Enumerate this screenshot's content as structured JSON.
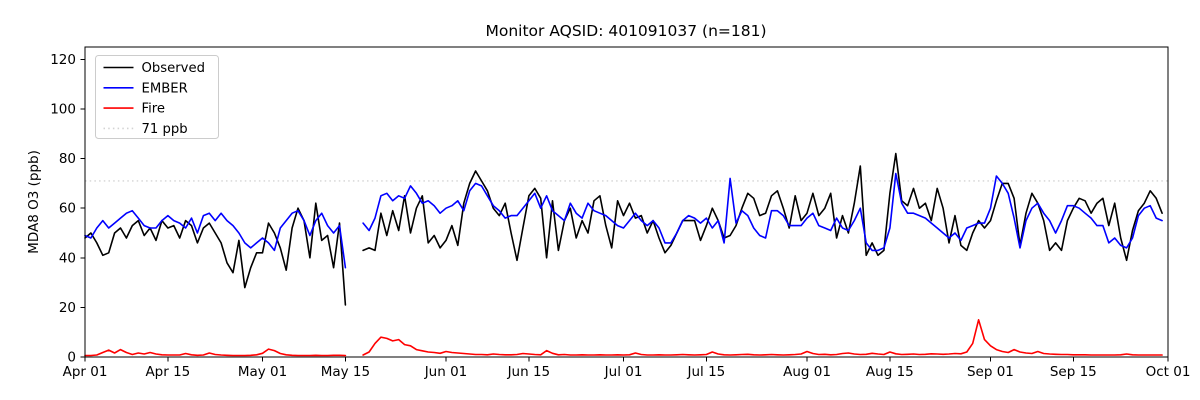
{
  "figure": {
    "background": "#ffffff",
    "frame_color": "#000000"
  },
  "chart_data": {
    "type": "line",
    "title": "Monitor AQSID: 401091037 (n=181)",
    "xlabel": "",
    "ylabel": "MDA8 O3 (ppb)",
    "ylim": [
      0,
      125
    ],
    "yticks": [
      0,
      20,
      40,
      60,
      80,
      100,
      120
    ],
    "x_days_total": 183,
    "xtick_days": [
      0,
      14,
      30,
      44,
      61,
      75,
      91,
      105,
      122,
      136,
      153,
      167,
      183
    ],
    "xtick_labels": [
      "Apr 01",
      "Apr 15",
      "May 01",
      "May 15",
      "Jun 01",
      "Jun 15",
      "Jul 01",
      "Jul 15",
      "Aug 01",
      "Aug 15",
      "Sep 01",
      "Sep 15",
      "Oct 01"
    ],
    "grid": false,
    "legend_position": "upper-left",
    "threshold": {
      "value": 71,
      "label": "71 ppb",
      "color": "#d3d3d3",
      "style": "dotted"
    },
    "legend": [
      {
        "label": "Observed",
        "color": "#000000",
        "style": "solid"
      },
      {
        "label": "EMBER",
        "color": "#0000ff",
        "style": "solid"
      },
      {
        "label": "Fire",
        "color": "#ff0000",
        "style": "solid"
      },
      {
        "label": "71 ppb",
        "color": "#d3d3d3",
        "style": "dotted"
      }
    ],
    "x_note": "daily values, day 0 = Apr 01; nulls = missing days (May 16, May 17)",
    "series": [
      {
        "name": "Observed",
        "color": "#000000",
        "values": [
          48,
          50,
          46,
          41,
          42,
          50,
          52,
          48,
          53,
          55,
          49,
          52,
          47,
          55,
          52,
          53,
          48,
          55,
          53,
          46,
          52,
          54,
          50,
          46,
          38,
          34,
          47,
          28,
          36,
          42,
          42,
          54,
          50,
          44,
          35,
          52,
          60,
          55,
          40,
          62,
          47,
          49,
          36,
          54,
          21,
          null,
          null,
          43,
          44,
          43,
          58,
          49,
          59,
          51,
          65,
          50,
          60,
          65,
          46,
          49,
          44,
          47,
          53,
          45,
          62,
          70,
          75,
          71,
          67,
          60,
          57,
          62,
          50,
          39,
          52,
          65,
          68,
          64,
          40,
          63,
          43,
          55,
          60,
          48,
          55,
          50,
          63,
          65,
          53,
          44,
          63,
          57,
          62,
          56,
          57,
          50,
          55,
          48,
          42,
          45,
          50,
          55,
          55,
          55,
          47,
          53,
          60,
          55,
          48,
          49,
          53,
          60,
          66,
          64,
          57,
          58,
          65,
          67,
          60,
          52,
          65,
          55,
          58,
          66,
          57,
          60,
          66,
          48,
          57,
          50,
          62,
          77,
          41,
          46,
          41,
          43,
          66,
          82,
          63,
          61,
          68,
          60,
          62,
          55,
          68,
          60,
          46,
          57,
          45,
          43,
          50,
          55,
          52,
          55,
          63,
          70,
          70,
          64,
          45,
          58,
          66,
          62,
          55,
          43,
          46,
          43,
          55,
          60,
          64,
          63,
          58,
          62,
          64,
          53,
          62,
          48,
          39,
          51,
          59,
          62,
          67,
          64,
          58
        ]
      },
      {
        "name": "EMBER",
        "color": "#0000ff",
        "values": [
          49,
          48,
          52,
          55,
          52,
          54,
          56,
          58,
          59,
          56,
          53,
          52,
          52,
          55,
          57,
          55,
          54,
          52,
          56,
          50,
          57,
          58,
          55,
          58,
          55,
          53,
          50,
          46,
          44,
          46,
          48,
          46,
          43,
          52,
          55,
          58,
          59,
          55,
          49,
          55,
          58,
          53,
          50,
          53,
          36,
          null,
          null,
          54,
          51,
          56,
          65,
          66,
          63,
          65,
          64,
          69,
          66,
          62,
          63,
          61,
          58,
          60,
          61,
          63,
          59,
          67,
          70,
          69,
          65,
          61,
          59,
          56,
          57,
          57,
          60,
          63,
          66,
          60,
          65,
          59,
          57,
          55,
          62,
          58,
          56,
          62,
          59,
          58,
          57,
          55,
          53,
          52,
          55,
          58,
          55,
          53,
          55,
          52,
          46,
          46,
          50,
          55,
          57,
          56,
          54,
          56,
          52,
          55,
          46,
          72,
          54,
          59,
          57,
          52,
          49,
          48,
          59,
          59,
          57,
          53,
          53,
          53,
          56,
          58,
          53,
          52,
          51,
          56,
          52,
          51,
          55,
          60,
          46,
          43,
          43,
          44,
          52,
          74,
          62,
          58,
          58,
          57,
          56,
          54,
          52,
          50,
          48,
          50,
          47,
          52,
          53,
          54,
          54,
          60,
          73,
          70,
          66,
          56,
          44,
          55,
          60,
          62,
          58,
          55,
          50,
          55,
          61,
          61,
          60,
          58,
          56,
          53,
          53,
          46,
          48,
          45,
          44,
          48,
          57,
          60,
          61,
          56,
          55
        ]
      },
      {
        "name": "Fire",
        "color": "#ff0000",
        "values": [
          0.6,
          0.6,
          0.8,
          1.8,
          2.8,
          1.6,
          3.0,
          1.8,
          1.0,
          1.6,
          1.2,
          1.8,
          1.2,
          0.9,
          0.8,
          0.8,
          0.8,
          1.4,
          0.9,
          0.7,
          0.8,
          1.6,
          1.0,
          0.8,
          0.7,
          0.6,
          0.6,
          0.6,
          0.7,
          0.9,
          1.5,
          3.2,
          2.6,
          1.4,
          0.9,
          0.7,
          0.6,
          0.6,
          0.6,
          0.7,
          0.6,
          0.6,
          0.7,
          0.7,
          0.6,
          null,
          null,
          0.8,
          2.0,
          5.5,
          8.0,
          7.5,
          6.5,
          7.0,
          5.0,
          4.5,
          3.0,
          2.5,
          2.0,
          1.8,
          1.5,
          2.2,
          1.8,
          1.6,
          1.4,
          1.2,
          1.0,
          1.0,
          0.9,
          1.2,
          1.0,
          0.9,
          0.9,
          1.0,
          1.4,
          1.2,
          1.0,
          0.9,
          2.6,
          1.5,
          0.9,
          1.0,
          0.8,
          0.8,
          0.9,
          0.8,
          0.8,
          0.9,
          0.8,
          0.8,
          0.9,
          0.8,
          0.9,
          1.6,
          1.0,
          0.8,
          0.8,
          0.9,
          0.8,
          0.8,
          0.9,
          1.0,
          0.9,
          0.8,
          0.9,
          1.0,
          2.0,
          1.2,
          0.9,
          0.8,
          0.9,
          1.0,
          1.1,
          0.9,
          0.8,
          0.9,
          1.0,
          0.9,
          0.8,
          0.9,
          1.0,
          1.2,
          2.2,
          1.4,
          1.0,
          1.1,
          0.9,
          1.0,
          1.4,
          1.6,
          1.2,
          1.0,
          1.1,
          1.5,
          1.2,
          1.0,
          2.0,
          1.3,
          1.0,
          1.1,
          1.2,
          1.0,
          1.1,
          1.3,
          1.2,
          1.1,
          1.2,
          1.4,
          1.3,
          2.0,
          5.5,
          15.0,
          7.0,
          4.5,
          3.0,
          2.2,
          1.8,
          3.0,
          2.0,
          1.6,
          1.4,
          2.2,
          1.4,
          1.2,
          1.1,
          1.0,
          1.0,
          0.9,
          0.9,
          0.9,
          0.8,
          0.8,
          0.8,
          0.8,
          0.8,
          0.9,
          1.2,
          0.9,
          0.8,
          0.8,
          0.8,
          0.8,
          0.8
        ]
      }
    ]
  }
}
